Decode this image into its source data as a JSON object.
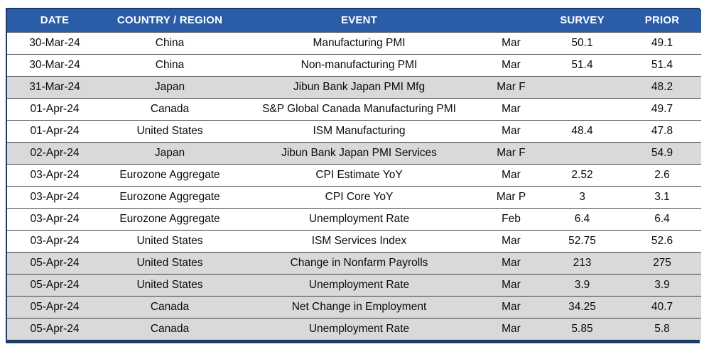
{
  "colors": {
    "header_bg": "#2A5CA8",
    "header_text": "#FFFFFF",
    "row_bg": "#FFFFFF",
    "row_shaded_bg": "#D9D9D9",
    "grid_line": "#3D3D3D",
    "outer_border": "#1E3A66"
  },
  "table": {
    "headers": [
      "DATE",
      "COUNTRY / REGION",
      "EVENT",
      "",
      "SURVEY",
      "PRIOR"
    ],
    "rows": [
      {
        "date": "30-Mar-24",
        "country": "China",
        "event": "Manufacturing PMI",
        "period": "Mar",
        "survey": "50.1",
        "prior": "49.1",
        "shaded": false
      },
      {
        "date": "30-Mar-24",
        "country": "China",
        "event": "Non-manufacturing PMI",
        "period": "Mar",
        "survey": "51.4",
        "prior": "51.4",
        "shaded": false
      },
      {
        "date": "31-Mar-24",
        "country": "Japan",
        "event": "Jibun Bank Japan PMI Mfg",
        "period": "Mar F",
        "survey": "",
        "prior": "48.2",
        "shaded": true
      },
      {
        "date": "01-Apr-24",
        "country": "Canada",
        "event": "S&P Global Canada Manufacturing PMI",
        "period": "Mar",
        "survey": "",
        "prior": "49.7",
        "shaded": false
      },
      {
        "date": "01-Apr-24",
        "country": "United States",
        "event": "ISM Manufacturing",
        "period": "Mar",
        "survey": "48.4",
        "prior": "47.8",
        "shaded": false
      },
      {
        "date": "02-Apr-24",
        "country": "Japan",
        "event": "Jibun Bank Japan PMI Services",
        "period": "Mar F",
        "survey": "",
        "prior": "54.9",
        "shaded": true
      },
      {
        "date": "03-Apr-24",
        "country": "Eurozone Aggregate",
        "event": "CPI Estimate YoY",
        "period": "Mar",
        "survey": "2.52",
        "prior": "2.6",
        "shaded": false
      },
      {
        "date": "03-Apr-24",
        "country": "Eurozone Aggregate",
        "event": "CPI Core YoY",
        "period": "Mar P",
        "survey": "3",
        "prior": "3.1",
        "shaded": false
      },
      {
        "date": "03-Apr-24",
        "country": "Eurozone Aggregate",
        "event": "Unemployment Rate",
        "period": "Feb",
        "survey": "6.4",
        "prior": "6.4",
        "shaded": false
      },
      {
        "date": "03-Apr-24",
        "country": "United States",
        "event": "ISM Services Index",
        "period": "Mar",
        "survey": "52.75",
        "prior": "52.6",
        "shaded": false
      },
      {
        "date": "05-Apr-24",
        "country": "United States",
        "event": "Change in Nonfarm Payrolls",
        "period": "Mar",
        "survey": "213",
        "prior": "275",
        "shaded": true
      },
      {
        "date": "05-Apr-24",
        "country": "United States",
        "event": "Unemployment Rate",
        "period": "Mar",
        "survey": "3.9",
        "prior": "3.9",
        "shaded": true
      },
      {
        "date": "05-Apr-24",
        "country": "Canada",
        "event": "Net Change in Employment",
        "period": "Mar",
        "survey": "34.25",
        "prior": "40.7",
        "shaded": true
      },
      {
        "date": "05-Apr-24",
        "country": "Canada",
        "event": "Unemployment Rate",
        "period": "Mar",
        "survey": "5.85",
        "prior": "5.8",
        "shaded": true
      }
    ]
  }
}
